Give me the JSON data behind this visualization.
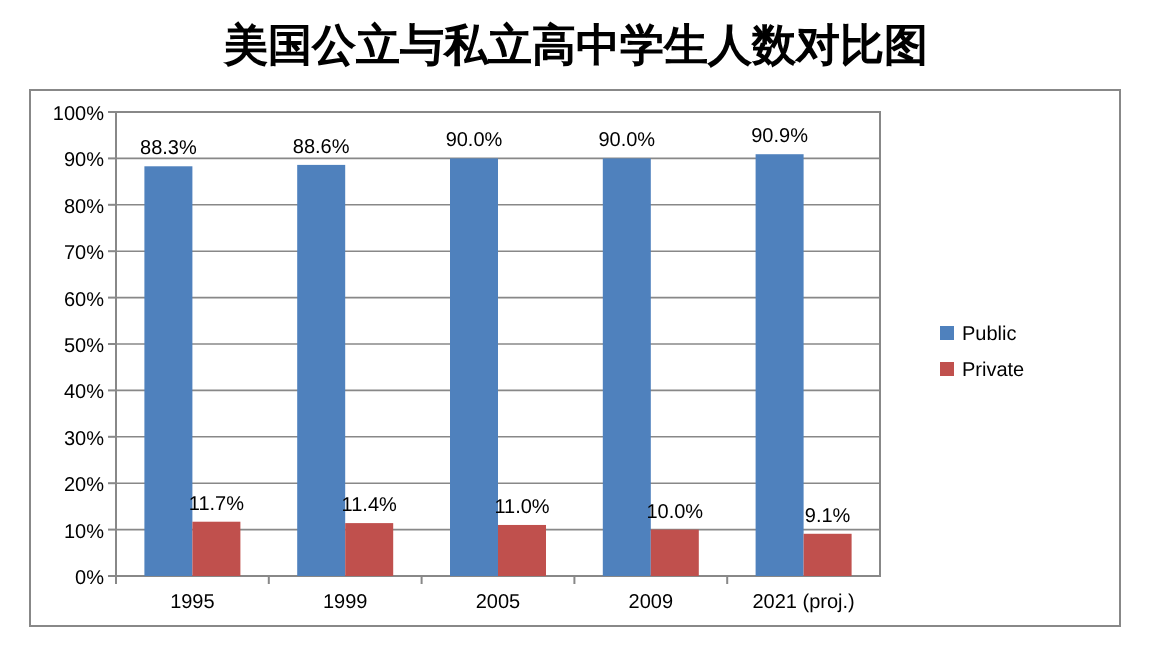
{
  "chart_data": {
    "type": "bar",
    "title": "美国公立与私立高中学生人数对比图",
    "categories": [
      "1995",
      "1999",
      "2005",
      "2009",
      "2021 (proj.)"
    ],
    "series": [
      {
        "name": "Public",
        "color": "#4f81bd",
        "values": [
          88.3,
          88.6,
          90.0,
          90.0,
          90.9
        ],
        "value_labels": [
          "88.3%",
          "88.6%",
          "90.0%",
          "90.0%",
          "90.9%"
        ]
      },
      {
        "name": "Private",
        "color": "#c0504d",
        "values": [
          11.7,
          11.4,
          11.0,
          10.0,
          9.1
        ],
        "value_labels": [
          "11.7%",
          "11.4%",
          "11.0%",
          "10.0%",
          "9.1%"
        ]
      }
    ],
    "ylim": [
      0,
      100
    ],
    "yticks": [
      {
        "value": 0,
        "label": "0%"
      },
      {
        "value": 10,
        "label": "10%"
      },
      {
        "value": 20,
        "label": "20%"
      },
      {
        "value": 30,
        "label": "30%"
      },
      {
        "value": 40,
        "label": "40%"
      },
      {
        "value": 50,
        "label": "50%"
      },
      {
        "value": 60,
        "label": "60%"
      },
      {
        "value": 70,
        "label": "70%"
      },
      {
        "value": 80,
        "label": "80%"
      },
      {
        "value": 90,
        "label": "90%"
      },
      {
        "value": 100,
        "label": "100%"
      }
    ],
    "grid": "y",
    "legend": "right"
  }
}
